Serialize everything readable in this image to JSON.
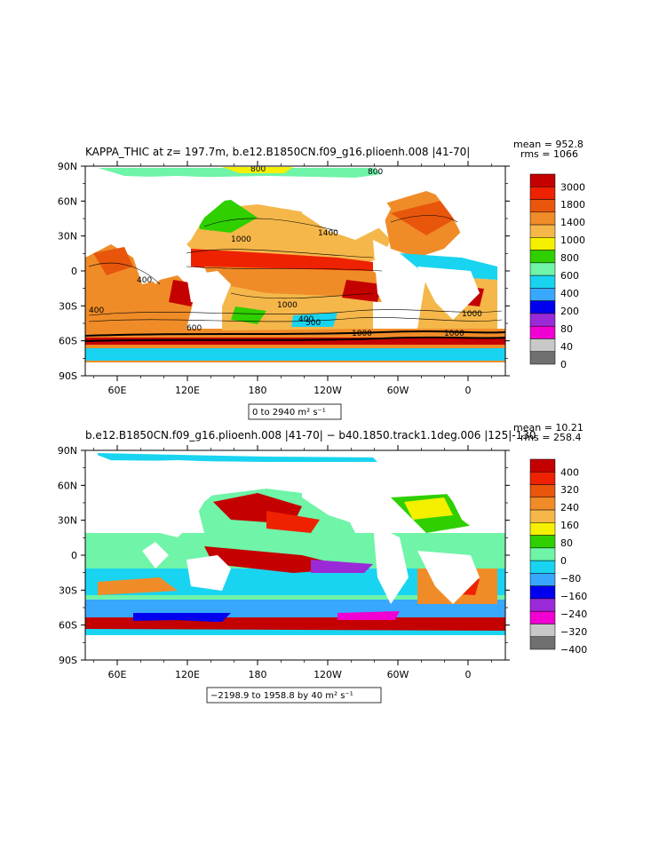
{
  "panel1": {
    "title": "KAPPA_THIC at z= 197.7m, b.e12.B1850CN.f09_g16.plioenh.008 |41-70|",
    "mean_label": "mean = 952.8",
    "rms_label": "rms = 1066",
    "range_text": "0 to 2940 m² s⁻¹",
    "contour_labels": [
      "800",
      "800",
      "400",
      "1000",
      "1400",
      "400",
      "1000",
      "600",
      "400",
      "1000",
      "500",
      "1000",
      "1000"
    ],
    "colorbar_labels": [
      "3000",
      "1800",
      "1400",
      "1000",
      "800",
      "600",
      "400",
      "200",
      "80",
      "40",
      "0"
    ],
    "colorbar_colors": [
      "#c40000",
      "#ee2200",
      "#e8560c",
      "#f08c28",
      "#f5b74a",
      "#f5f000",
      "#2fcf00",
      "#6ff4a8",
      "#19d4f0",
      "#38a8ff",
      "#0000ee",
      "#9a2ad8",
      "#f000d2",
      "#c8c8c8",
      "#707070"
    ]
  },
  "panel2": {
    "title": "b.e12.B1850CN.f09_g16.plioenh.008 |41-70| − b40.1850.track1.1deg.006 |125|-130",
    "mean_label": "mean = 10.21",
    "rms_label": "rms = 258.4",
    "range_text": "−2198.9 to 1958.8 by 40 m² s⁻¹",
    "colorbar_labels": [
      "400",
      "320",
      "240",
      "160",
      "80",
      "0",
      "−80",
      "−160",
      "−240",
      "−320",
      "−400"
    ],
    "colorbar_colors": [
      "#c40000",
      "#ee2200",
      "#e8560c",
      "#f08c28",
      "#f5b74a",
      "#f5f000",
      "#2fcf00",
      "#6ff4a8",
      "#19d4f0",
      "#38a8ff",
      "#0000ee",
      "#9a2ad8",
      "#f000d2",
      "#c8c8c8",
      "#707070"
    ]
  },
  "axes": {
    "lat_labels": [
      "90N",
      "60N",
      "30N",
      "0",
      "30S",
      "60S",
      "90S"
    ],
    "lon_labels": [
      "60E",
      "120E",
      "180",
      "120W",
      "60W",
      "0"
    ]
  }
}
